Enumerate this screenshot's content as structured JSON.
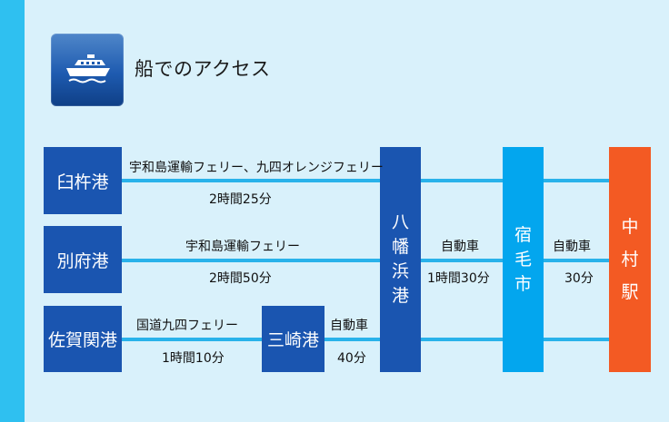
{
  "header": {
    "title": "船でのアクセス",
    "icon": "ship-icon"
  },
  "ports": {
    "usuki": "臼杵港",
    "beppu": "別府港",
    "saganoseki": "佐賀関港",
    "misaki": "三崎港"
  },
  "routes": {
    "usuki_ferry": "宇和島運輸フェリー、九四オレンジフェリー",
    "usuki_time": "2時間25分",
    "beppu_ferry": "宇和島運輸フェリー",
    "beppu_time": "2時間50分",
    "saganoseki_ferry": "国道九四フェリー",
    "saganoseki_time": "1時間10分",
    "misaki_mode": "自動車",
    "misaki_time": "40分",
    "yawatahama_mode": "自動車",
    "yawatahama_time": "1時間30分",
    "sukumo_mode": "自動車",
    "sukumo_time": "30分"
  },
  "stations": {
    "yawatahama": [
      "八",
      "幡",
      "浜",
      "港"
    ],
    "sukumo": [
      "宿",
      "毛",
      "市"
    ],
    "nakamura": [
      "中",
      "村",
      "駅"
    ]
  },
  "colors": {
    "navy": "#1a55b0",
    "sky": "#03a6ee",
    "orange": "#f35a23",
    "line": "#29b2ea",
    "bg": "#d9f1fb"
  }
}
